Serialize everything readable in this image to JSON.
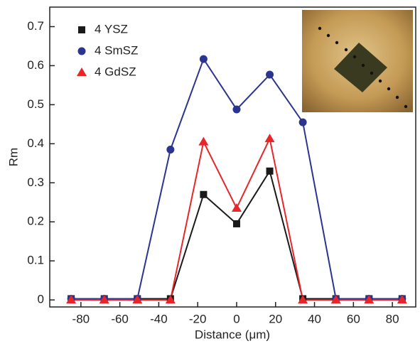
{
  "chart_data": {
    "type": "line",
    "x_label": "Distance (μm)",
    "y_label": "Rm",
    "x": [
      -85,
      -68,
      -51,
      -34,
      -17,
      0,
      17,
      34,
      51,
      68,
      85
    ],
    "series": [
      {
        "name": "4 YSZ",
        "color": "#1a1a1a",
        "marker": "square",
        "values": [
          0.003,
          0.003,
          0.003,
          0.003,
          0.27,
          0.195,
          0.33,
          0.003,
          0.003,
          0.003,
          0.003
        ]
      },
      {
        "name": "4 SmSZ",
        "color": "#2b3590",
        "marker": "circle",
        "values": [
          0.003,
          0.003,
          0.003,
          0.385,
          0.617,
          0.488,
          0.577,
          0.455,
          0.003,
          0.003,
          0.003
        ]
      },
      {
        "name": "4 GdSZ",
        "color": "#e8262a",
        "marker": "triangle",
        "values": [
          0.0,
          0.0,
          0.0,
          0.0,
          0.405,
          0.235,
          0.413,
          0.0,
          0.0,
          0.0,
          0.0
        ]
      }
    ],
    "xlim": [
      -96,
      92
    ],
    "ylim": [
      -0.018,
      0.75
    ],
    "xticks": [
      -80,
      -60,
      -40,
      -20,
      0,
      20,
      40,
      60,
      80
    ],
    "yticks": [
      0,
      0.1,
      0.2,
      0.3,
      0.4,
      0.5,
      0.6,
      0.7
    ],
    "legend": "upper left"
  }
}
